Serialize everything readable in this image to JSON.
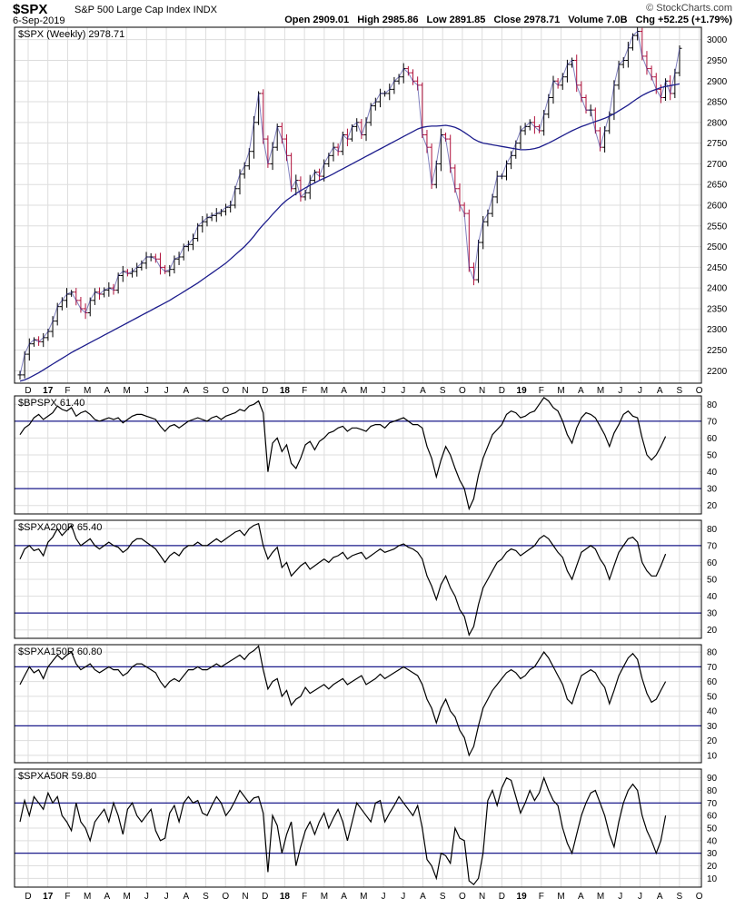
{
  "header": {
    "symbol": "$SPX",
    "description": "S&P 500 Large Cap Index INDX",
    "date": "6-Sep-2019",
    "brand": "© StockCharts.com",
    "open_label": "Open",
    "open": "2909.01",
    "high_label": "High",
    "high": "2985.86",
    "low_label": "Low",
    "low": "2891.85",
    "close_label": "Close",
    "close": "2978.71",
    "volume_label": "Volume",
    "volume": "7.0B",
    "chg_label": "Chg",
    "chg": "+52.25 (+1.79%)"
  },
  "colors": {
    "up_bar": "#000000",
    "down_bar": "#b0103a",
    "moving_average": "#1c1c8c",
    "reference_line": "#1c1c8c",
    "indicator_line": "#000000",
    "grid": "#dddddd"
  },
  "chart_data": [
    {
      "type": "line",
      "title": "$SPX (Weekly) 2978.71",
      "series_style": "ohlc-bars",
      "x_ticks": [
        "D",
        "17",
        "F",
        "M",
        "A",
        "M",
        "J",
        "J",
        "A",
        "S",
        "O",
        "N",
        "D",
        "18",
        "F",
        "M",
        "A",
        "M",
        "J",
        "J",
        "A",
        "S",
        "O",
        "N",
        "D",
        "19",
        "F",
        "M",
        "A",
        "M",
        "J",
        "J",
        "A",
        "S",
        "O"
      ],
      "ylim": [
        2170,
        3030
      ],
      "y_ticks": [
        2200,
        2250,
        2300,
        2350,
        2400,
        2450,
        2500,
        2550,
        2600,
        2650,
        2700,
        2750,
        2800,
        2850,
        2900,
        2950,
        3000
      ],
      "close": [
        2190,
        2240,
        2265,
        2275,
        2270,
        2280,
        2295,
        2320,
        2355,
        2370,
        2385,
        2390,
        2370,
        2350,
        2340,
        2370,
        2390,
        2385,
        2395,
        2400,
        2395,
        2430,
        2440,
        2435,
        2440,
        2450,
        2460,
        2475,
        2475,
        2470,
        2450,
        2440,
        2445,
        2470,
        2475,
        2500,
        2505,
        2520,
        2550,
        2560,
        2570,
        2575,
        2580,
        2585,
        2595,
        2600,
        2640,
        2675,
        2695,
        2730,
        2800,
        2870,
        2760,
        2700,
        2740,
        2790,
        2760,
        2720,
        2640,
        2660,
        2620,
        2630,
        2660,
        2680,
        2670,
        2700,
        2720,
        2740,
        2730,
        2770,
        2760,
        2790,
        2800,
        2770,
        2800,
        2840,
        2850,
        2870,
        2870,
        2880,
        2900,
        2910,
        2930,
        2920,
        2900,
        2890,
        2770,
        2740,
        2650,
        2700,
        2770,
        2760,
        2690,
        2640,
        2600,
        2580,
        2450,
        2420,
        2510,
        2560,
        2580,
        2620,
        2670,
        2670,
        2700,
        2720,
        2750,
        2780,
        2790,
        2800,
        2790,
        2780,
        2820,
        2860,
        2900,
        2890,
        2910,
        2940,
        2950,
        2890,
        2860,
        2830,
        2830,
        2780,
        2740,
        2780,
        2820,
        2890,
        2940,
        2950,
        2980,
        3010,
        3020,
        2960,
        2930,
        2910,
        2880,
        2860,
        2900,
        2870,
        2920,
        2979
      ],
      "ma_40w": [
        2175,
        2178,
        2183,
        2189,
        2195,
        2202,
        2209,
        2216,
        2223,
        2230,
        2237,
        2244,
        2250,
        2256,
        2262,
        2268,
        2274,
        2280,
        2286,
        2292,
        2298,
        2304,
        2310,
        2316,
        2322,
        2328,
        2334,
        2340,
        2346,
        2352,
        2358,
        2364,
        2370,
        2377,
        2384,
        2391,
        2398,
        2405,
        2412,
        2420,
        2428,
        2436,
        2444,
        2452,
        2460,
        2470,
        2480,
        2490,
        2500,
        2512,
        2525,
        2540,
        2553,
        2565,
        2578,
        2590,
        2602,
        2612,
        2620,
        2628,
        2635,
        2642,
        2648,
        2654,
        2660,
        2665,
        2670,
        2676,
        2682,
        2688,
        2694,
        2700,
        2706,
        2712,
        2718,
        2724,
        2730,
        2736,
        2742,
        2748,
        2754,
        2760,
        2766,
        2772,
        2778,
        2784,
        2788,
        2790,
        2791,
        2791,
        2792,
        2793,
        2791,
        2788,
        2783,
        2776,
        2768,
        2760,
        2754,
        2750,
        2748,
        2746,
        2744,
        2742,
        2740,
        2738,
        2736,
        2734,
        2734,
        2735,
        2737,
        2740,
        2745,
        2750,
        2756,
        2762,
        2768,
        2774,
        2780,
        2785,
        2790,
        2794,
        2798,
        2802,
        2806,
        2810,
        2815,
        2821,
        2828,
        2835,
        2842,
        2850,
        2858,
        2865,
        2871,
        2876,
        2880,
        2884,
        2887,
        2889,
        2891,
        2893
      ]
    },
    {
      "type": "line",
      "title": "$BPSPX 61.40",
      "ylim": [
        15,
        85
      ],
      "y_ticks": [
        20,
        30,
        40,
        50,
        60,
        70,
        80
      ],
      "reference_lines": [
        30,
        70
      ],
      "values": [
        62,
        66,
        68,
        72,
        74,
        71,
        73,
        75,
        79,
        77,
        76,
        78,
        73,
        75,
        76,
        74,
        71,
        70,
        71,
        72,
        71,
        72,
        69,
        71,
        73,
        74,
        74,
        73,
        72,
        71,
        67,
        64,
        67,
        68,
        66,
        68,
        70,
        71,
        72,
        71,
        70,
        72,
        73,
        71,
        73,
        74,
        75,
        77,
        76,
        79,
        80,
        82,
        75,
        40,
        57,
        60,
        52,
        56,
        45,
        42,
        48,
        56,
        58,
        53,
        58,
        60,
        63,
        64,
        66,
        67,
        64,
        66,
        66,
        65,
        64,
        67,
        68,
        68,
        66,
        69,
        70,
        71,
        72,
        70,
        68,
        68,
        66,
        55,
        48,
        37,
        47,
        55,
        50,
        42,
        35,
        30,
        18,
        24,
        38,
        48,
        55,
        62,
        65,
        68,
        74,
        76,
        75,
        72,
        73,
        75,
        76,
        80,
        84,
        82,
        78,
        76,
        70,
        62,
        57,
        66,
        72,
        75,
        74,
        72,
        67,
        62,
        55,
        63,
        68,
        74,
        76,
        73,
        72,
        60,
        50,
        47,
        50,
        55,
        61
      ]
    },
    {
      "type": "line",
      "title": "$SPXA200R 65.40",
      "ylim": [
        15,
        85
      ],
      "y_ticks": [
        20,
        30,
        40,
        50,
        60,
        70,
        80
      ],
      "reference_lines": [
        30,
        70
      ],
      "values": [
        62,
        68,
        70,
        67,
        68,
        64,
        72,
        75,
        80,
        76,
        79,
        82,
        74,
        70,
        72,
        74,
        70,
        68,
        70,
        72,
        70,
        69,
        66,
        68,
        72,
        74,
        74,
        72,
        70,
        68,
        64,
        60,
        64,
        66,
        64,
        68,
        70,
        70,
        72,
        70,
        70,
        72,
        74,
        72,
        74,
        76,
        78,
        79,
        76,
        80,
        82,
        83,
        70,
        62,
        66,
        69,
        57,
        60,
        52,
        55,
        58,
        60,
        56,
        58,
        60,
        62,
        60,
        63,
        64,
        66,
        62,
        64,
        65,
        66,
        62,
        64,
        66,
        68,
        66,
        67,
        68,
        70,
        71,
        69,
        68,
        66,
        62,
        52,
        46,
        38,
        47,
        52,
        45,
        40,
        32,
        28,
        17,
        22,
        35,
        45,
        50,
        55,
        60,
        62,
        66,
        68,
        67,
        64,
        66,
        68,
        70,
        74,
        76,
        74,
        70,
        66,
        63,
        55,
        50,
        58,
        66,
        68,
        70,
        68,
        62,
        58,
        50,
        58,
        66,
        70,
        74,
        75,
        72,
        60,
        55,
        52,
        52,
        58,
        65
      ]
    },
    {
      "type": "line",
      "title": "$SPXA150R 60.80",
      "ylim": [
        5,
        85
      ],
      "y_ticks": [
        10,
        20,
        30,
        40,
        50,
        60,
        70,
        80
      ],
      "reference_lines": [
        30,
        70
      ],
      "values": [
        58,
        64,
        70,
        66,
        68,
        62,
        70,
        74,
        78,
        75,
        78,
        80,
        72,
        68,
        70,
        72,
        68,
        66,
        68,
        70,
        68,
        68,
        64,
        66,
        70,
        72,
        72,
        70,
        68,
        66,
        60,
        56,
        60,
        62,
        60,
        64,
        68,
        68,
        70,
        68,
        68,
        70,
        72,
        70,
        72,
        74,
        76,
        78,
        75,
        79,
        81,
        84,
        68,
        55,
        60,
        62,
        50,
        54,
        44,
        48,
        50,
        56,
        52,
        54,
        56,
        58,
        55,
        58,
        60,
        62,
        58,
        60,
        62,
        64,
        58,
        60,
        62,
        65,
        62,
        64,
        66,
        68,
        70,
        68,
        66,
        64,
        58,
        48,
        42,
        32,
        42,
        48,
        40,
        36,
        27,
        22,
        10,
        16,
        30,
        42,
        48,
        54,
        58,
        62,
        66,
        68,
        66,
        62,
        64,
        68,
        70,
        75,
        80,
        76,
        70,
        64,
        58,
        48,
        45,
        55,
        64,
        66,
        68,
        66,
        60,
        56,
        45,
        54,
        64,
        70,
        76,
        79,
        75,
        62,
        52,
        46,
        48,
        54,
        60
      ]
    },
    {
      "type": "line",
      "title": "$SPXA50R 59.80",
      "ylim": [
        3,
        97
      ],
      "y_ticks": [
        10,
        20,
        30,
        40,
        50,
        60,
        70,
        80,
        90
      ],
      "reference_lines": [
        30,
        70
      ],
      "values": [
        55,
        72,
        60,
        75,
        70,
        65,
        78,
        70,
        75,
        60,
        55,
        48,
        70,
        55,
        50,
        40,
        55,
        60,
        65,
        55,
        70,
        60,
        45,
        65,
        70,
        60,
        55,
        60,
        65,
        48,
        40,
        42,
        62,
        68,
        55,
        70,
        75,
        70,
        72,
        62,
        60,
        68,
        75,
        70,
        60,
        65,
        72,
        80,
        75,
        70,
        74,
        75,
        62,
        15,
        60,
        52,
        30,
        45,
        55,
        20,
        35,
        48,
        55,
        45,
        55,
        62,
        50,
        58,
        65,
        55,
        40,
        55,
        70,
        65,
        60,
        55,
        70,
        72,
        55,
        62,
        68,
        75,
        70,
        65,
        60,
        68,
        50,
        25,
        20,
        10,
        30,
        28,
        22,
        50,
        42,
        40,
        8,
        5,
        10,
        30,
        72,
        80,
        68,
        82,
        90,
        88,
        75,
        62,
        70,
        80,
        72,
        78,
        90,
        80,
        72,
        68,
        50,
        38,
        30,
        45,
        60,
        70,
        78,
        80,
        70,
        60,
        45,
        35,
        55,
        70,
        80,
        85,
        80,
        60,
        48,
        40,
        30,
        40,
        60
      ]
    }
  ]
}
